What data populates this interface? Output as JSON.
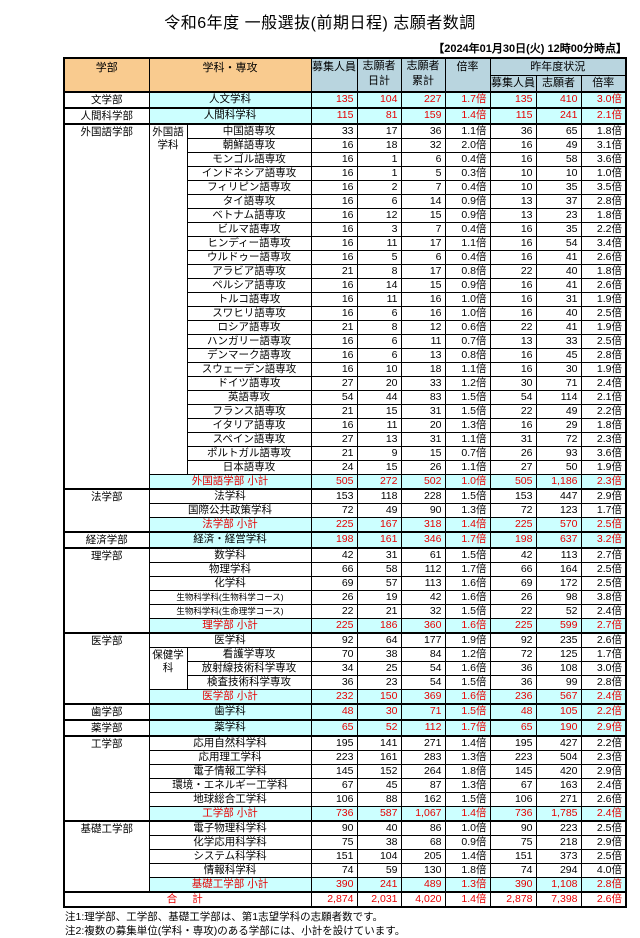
{
  "title": "令和6年度 一般選抜(前期日程) 志願者数調",
  "timestamp": "【2024年01月30日(火) 12時00分時点】",
  "colors": {
    "header_orange": "#F9CB8F",
    "header_blue": "#B9D5DF",
    "highlight_cyan": "#CCFFFF",
    "accent_red": "#E60000"
  },
  "header": {
    "faculty": "学部",
    "department": "学科・専攻",
    "capacity": "募集人員",
    "applicants_daily": "志願者\n日計",
    "applicants_total": "志願者\n累計",
    "ratio": "倍率",
    "last_year": "昨年度状況",
    "ly_capacity": "募集人員",
    "ly_applicants": "志願者",
    "ly_ratio": "倍率"
  },
  "table": {
    "rows": [
      {
        "faculty": "文学部",
        "facultyRowspan": 1,
        "major": "人文学科",
        "majorSpan": 2,
        "type": "highlight",
        "groupStart": true,
        "values": [
          "135",
          "104",
          "227",
          "1.7倍",
          "135",
          "410",
          "3.0倍"
        ]
      },
      {
        "faculty": "人間科学部",
        "facultyRowspan": 1,
        "major": "人間科学科",
        "majorSpan": 2,
        "type": "highlight",
        "groupStart": true,
        "values": [
          "115",
          "81",
          "159",
          "1.4倍",
          "115",
          "241",
          "2.1倍"
        ]
      },
      {
        "faculty": "外国語学部",
        "facultyRowspan": 26,
        "sub": "外国語\n学科",
        "subRowspan": 25,
        "major": "中国語専攻",
        "type": "normal",
        "groupStart": true,
        "values": [
          "33",
          "17",
          "36",
          "1.1倍",
          "36",
          "65",
          "1.8倍"
        ]
      },
      {
        "major": "朝鮮語専攻",
        "type": "normal",
        "values": [
          "16",
          "18",
          "32",
          "2.0倍",
          "16",
          "49",
          "3.1倍"
        ]
      },
      {
        "major": "モンゴル語専攻",
        "type": "normal",
        "values": [
          "16",
          "1",
          "6",
          "0.4倍",
          "16",
          "58",
          "3.6倍"
        ]
      },
      {
        "major": "インドネシア語専攻",
        "type": "normal",
        "values": [
          "16",
          "1",
          "5",
          "0.3倍",
          "10",
          "10",
          "1.0倍"
        ]
      },
      {
        "major": "フィリピン語専攻",
        "type": "normal",
        "values": [
          "16",
          "2",
          "7",
          "0.4倍",
          "10",
          "35",
          "3.5倍"
        ]
      },
      {
        "major": "タイ語専攻",
        "type": "normal",
        "values": [
          "16",
          "6",
          "14",
          "0.9倍",
          "13",
          "37",
          "2.8倍"
        ]
      },
      {
        "major": "ベトナム語専攻",
        "type": "normal",
        "values": [
          "16",
          "12",
          "15",
          "0.9倍",
          "13",
          "23",
          "1.8倍"
        ]
      },
      {
        "major": "ビルマ語専攻",
        "type": "normal",
        "values": [
          "16",
          "3",
          "7",
          "0.4倍",
          "16",
          "35",
          "2.2倍"
        ]
      },
      {
        "major": "ヒンディー語専攻",
        "type": "normal",
        "values": [
          "16",
          "11",
          "17",
          "1.1倍",
          "16",
          "54",
          "3.4倍"
        ]
      },
      {
        "major": "ウルドゥー語専攻",
        "type": "normal",
        "values": [
          "16",
          "5",
          "6",
          "0.4倍",
          "16",
          "41",
          "2.6倍"
        ]
      },
      {
        "major": "アラビア語専攻",
        "type": "normal",
        "values": [
          "21",
          "8",
          "17",
          "0.8倍",
          "22",
          "40",
          "1.8倍"
        ]
      },
      {
        "major": "ペルシア語専攻",
        "type": "normal",
        "values": [
          "16",
          "14",
          "15",
          "0.9倍",
          "16",
          "41",
          "2.6倍"
        ]
      },
      {
        "major": "トルコ語専攻",
        "type": "normal",
        "values": [
          "16",
          "11",
          "16",
          "1.0倍",
          "16",
          "31",
          "1.9倍"
        ]
      },
      {
        "major": "スワヒリ語専攻",
        "type": "normal",
        "values": [
          "16",
          "6",
          "16",
          "1.0倍",
          "16",
          "40",
          "2.5倍"
        ]
      },
      {
        "major": "ロシア語専攻",
        "type": "normal",
        "values": [
          "21",
          "8",
          "12",
          "0.6倍",
          "22",
          "41",
          "1.9倍"
        ]
      },
      {
        "major": "ハンガリー語専攻",
        "type": "normal",
        "values": [
          "16",
          "6",
          "11",
          "0.7倍",
          "13",
          "33",
          "2.5倍"
        ]
      },
      {
        "major": "デンマーク語専攻",
        "type": "normal",
        "values": [
          "16",
          "6",
          "13",
          "0.8倍",
          "16",
          "45",
          "2.8倍"
        ]
      },
      {
        "major": "スウェーデン語専攻",
        "type": "normal",
        "values": [
          "16",
          "10",
          "18",
          "1.1倍",
          "16",
          "30",
          "1.9倍"
        ]
      },
      {
        "major": "ドイツ語専攻",
        "type": "normal",
        "values": [
          "27",
          "20",
          "33",
          "1.2倍",
          "30",
          "71",
          "2.4倍"
        ]
      },
      {
        "major": "英語専攻",
        "type": "normal",
        "values": [
          "54",
          "44",
          "83",
          "1.5倍",
          "54",
          "114",
          "2.1倍"
        ]
      },
      {
        "major": "フランス語専攻",
        "type": "normal",
        "values": [
          "21",
          "15",
          "31",
          "1.5倍",
          "22",
          "49",
          "2.2倍"
        ]
      },
      {
        "major": "イタリア語専攻",
        "type": "normal",
        "values": [
          "16",
          "11",
          "20",
          "1.3倍",
          "16",
          "29",
          "1.8倍"
        ]
      },
      {
        "major": "スペイン語専攻",
        "type": "normal",
        "values": [
          "27",
          "13",
          "31",
          "1.1倍",
          "31",
          "72",
          "2.3倍"
        ]
      },
      {
        "major": "ポルトガル語専攻",
        "type": "normal",
        "values": [
          "21",
          "9",
          "15",
          "0.7倍",
          "26",
          "93",
          "3.6倍"
        ]
      },
      {
        "major": "日本語専攻",
        "type": "normal",
        "values": [
          "24",
          "15",
          "26",
          "1.1倍",
          "27",
          "50",
          "1.9倍"
        ]
      },
      {
        "major": "外国語学部 小計",
        "majorSpan": 2,
        "type": "subtotal",
        "values": [
          "505",
          "272",
          "502",
          "1.0倍",
          "505",
          "1,186",
          "2.3倍"
        ]
      },
      {
        "faculty": "法学部",
        "facultyRowspan": 3,
        "major": "法学科",
        "majorSpan": 2,
        "type": "normal",
        "groupStart": true,
        "values": [
          "153",
          "118",
          "228",
          "1.5倍",
          "153",
          "447",
          "2.9倍"
        ]
      },
      {
        "major": "国際公共政策学科",
        "majorSpan": 2,
        "type": "normal",
        "values": [
          "72",
          "49",
          "90",
          "1.3倍",
          "72",
          "123",
          "1.7倍"
        ]
      },
      {
        "major": "法学部 小計",
        "majorSpan": 2,
        "type": "subtotal",
        "values": [
          "225",
          "167",
          "318",
          "1.4倍",
          "225",
          "570",
          "2.5倍"
        ]
      },
      {
        "faculty": "経済学部",
        "facultyRowspan": 1,
        "major": "経済・経営学科",
        "majorSpan": 2,
        "type": "highlight",
        "groupStart": true,
        "values": [
          "198",
          "161",
          "346",
          "1.7倍",
          "198",
          "637",
          "3.2倍"
        ]
      },
      {
        "faculty": "理学部",
        "facultyRowspan": 6,
        "major": "数学科",
        "majorSpan": 2,
        "type": "normal",
        "groupStart": true,
        "values": [
          "42",
          "31",
          "61",
          "1.5倍",
          "42",
          "113",
          "2.7倍"
        ]
      },
      {
        "major": "物理学科",
        "majorSpan": 2,
        "type": "normal",
        "values": [
          "66",
          "58",
          "112",
          "1.7倍",
          "66",
          "164",
          "2.5倍"
        ]
      },
      {
        "major": "化学科",
        "majorSpan": 2,
        "type": "normal",
        "values": [
          "69",
          "57",
          "113",
          "1.6倍",
          "69",
          "172",
          "2.5倍"
        ]
      },
      {
        "major": "生物科学科(生物科学コース)",
        "majorSpan": 2,
        "type": "normal",
        "values": [
          "26",
          "19",
          "42",
          "1.6倍",
          "26",
          "98",
          "3.8倍"
        ]
      },
      {
        "major": "生物科学科(生命理学コース)",
        "majorSpan": 2,
        "type": "normal",
        "values": [
          "22",
          "21",
          "32",
          "1.5倍",
          "22",
          "52",
          "2.4倍"
        ]
      },
      {
        "major": "理学部 小計",
        "majorSpan": 2,
        "type": "subtotal",
        "values": [
          "225",
          "186",
          "360",
          "1.6倍",
          "225",
          "599",
          "2.7倍"
        ]
      },
      {
        "faculty": "医学部",
        "facultyRowspan": 5,
        "major": "医学科",
        "majorSpan": 2,
        "type": "normal",
        "groupStart": true,
        "values": [
          "92",
          "64",
          "177",
          "1.9倍",
          "92",
          "235",
          "2.6倍"
        ]
      },
      {
        "sub": "保健学\n科",
        "subRowspan": 3,
        "major": "看護学専攻",
        "type": "normal",
        "values": [
          "70",
          "38",
          "84",
          "1.2倍",
          "72",
          "125",
          "1.7倍"
        ]
      },
      {
        "major": "放射線技術科学専攻",
        "type": "normal",
        "values": [
          "34",
          "25",
          "54",
          "1.6倍",
          "36",
          "108",
          "3.0倍"
        ]
      },
      {
        "major": "検査技術科学専攻",
        "type": "normal",
        "values": [
          "36",
          "23",
          "54",
          "1.5倍",
          "36",
          "99",
          "2.8倍"
        ]
      },
      {
        "major": "医学部 小計",
        "majorSpan": 2,
        "type": "subtotal",
        "values": [
          "232",
          "150",
          "369",
          "1.6倍",
          "236",
          "567",
          "2.4倍"
        ]
      },
      {
        "faculty": "歯学部",
        "facultyRowspan": 1,
        "major": "歯学科",
        "majorSpan": 2,
        "type": "highlight",
        "groupStart": true,
        "values": [
          "48",
          "30",
          "71",
          "1.5倍",
          "48",
          "105",
          "2.2倍"
        ]
      },
      {
        "faculty": "薬学部",
        "facultyRowspan": 1,
        "major": "薬学科",
        "majorSpan": 2,
        "type": "highlight",
        "groupStart": true,
        "values": [
          "65",
          "52",
          "112",
          "1.7倍",
          "65",
          "190",
          "2.9倍"
        ]
      },
      {
        "faculty": "工学部",
        "facultyRowspan": 6,
        "major": "応用自然科学科",
        "majorSpan": 2,
        "type": "normal",
        "groupStart": true,
        "values": [
          "195",
          "141",
          "271",
          "1.4倍",
          "195",
          "427",
          "2.2倍"
        ]
      },
      {
        "major": "応用理工学科",
        "majorSpan": 2,
        "type": "normal",
        "values": [
          "223",
          "161",
          "283",
          "1.3倍",
          "223",
          "504",
          "2.3倍"
        ]
      },
      {
        "major": "電子情報工学科",
        "majorSpan": 2,
        "type": "normal",
        "values": [
          "145",
          "152",
          "264",
          "1.8倍",
          "145",
          "420",
          "2.9倍"
        ]
      },
      {
        "major": "環境・エネルギー工学科",
        "majorSpan": 2,
        "type": "normal",
        "values": [
          "67",
          "45",
          "87",
          "1.3倍",
          "67",
          "163",
          "2.4倍"
        ]
      },
      {
        "major": "地球総合工学科",
        "majorSpan": 2,
        "type": "normal",
        "values": [
          "106",
          "88",
          "162",
          "1.5倍",
          "106",
          "271",
          "2.6倍"
        ]
      },
      {
        "major": "工学部 小計",
        "majorSpan": 2,
        "type": "subtotal",
        "values": [
          "736",
          "587",
          "1,067",
          "1.4倍",
          "736",
          "1,785",
          "2.4倍"
        ]
      },
      {
        "faculty": "基礎工学部",
        "facultyRowspan": 5,
        "major": "電子物理科学科",
        "majorSpan": 2,
        "type": "normal",
        "groupStart": true,
        "values": [
          "90",
          "40",
          "86",
          "1.0倍",
          "90",
          "223",
          "2.5倍"
        ]
      },
      {
        "major": "化学応用科学科",
        "majorSpan": 2,
        "type": "normal",
        "values": [
          "75",
          "38",
          "68",
          "0.9倍",
          "75",
          "218",
          "2.9倍"
        ]
      },
      {
        "major": "システム科学科",
        "majorSpan": 2,
        "type": "normal",
        "values": [
          "151",
          "104",
          "205",
          "1.4倍",
          "151",
          "373",
          "2.5倍"
        ]
      },
      {
        "major": "情報科学科",
        "majorSpan": 2,
        "type": "normal",
        "values": [
          "74",
          "59",
          "130",
          "1.8倍",
          "74",
          "294",
          "4.0倍"
        ]
      },
      {
        "major": "基礎工学部 小計",
        "majorSpan": 2,
        "type": "subtotal",
        "values": [
          "390",
          "241",
          "489",
          "1.3倍",
          "390",
          "1,108",
          "2.8倍"
        ]
      },
      {
        "major": "合 計",
        "majorSpan": 3,
        "type": "total",
        "groupStart": true,
        "values": [
          "2,874",
          "2,031",
          "4,020",
          "1.4倍",
          "2,878",
          "7,398",
          "2.6倍"
        ]
      }
    ]
  },
  "notes": [
    "注1:理学部、工学部、基礎工学部は、第1志望学科の志願者数です。",
    "注2:複数の募集単位(学科・専攻)のある学部には、小計を設けています。"
  ]
}
